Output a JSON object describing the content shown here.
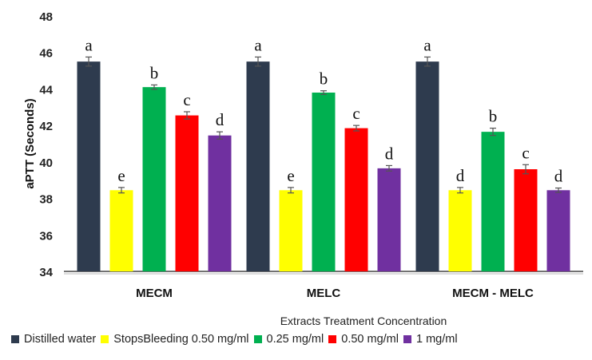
{
  "chart_data": {
    "type": "bar",
    "title": "",
    "xlabel": "Extracts Treatment Concentration",
    "ylabel": "aPTT (Seconds)",
    "ylim": [
      34,
      48
    ],
    "yticks": [
      34,
      36,
      38,
      40,
      42,
      44,
      46,
      48
    ],
    "grid": false,
    "legend_position": "bottom",
    "categories": [
      "MECM",
      "MELC",
      "MECM - MELC"
    ],
    "series": [
      {
        "name": "Distilled water",
        "color": "#2e3b4e",
        "values": [
          45.5,
          45.5,
          45.5
        ],
        "errors": [
          0.25,
          0.25,
          0.25
        ],
        "labels": [
          "a",
          "a",
          "a"
        ]
      },
      {
        "name": "StopsBleeding 0.50 mg/ml",
        "color": "#ffff00",
        "values": [
          38.45,
          38.45,
          38.45
        ],
        "errors": [
          0.15,
          0.15,
          0.15
        ],
        "labels": [
          "e",
          "e",
          "d"
        ]
      },
      {
        "name": "0.25 mg/ml",
        "color": "#00b050",
        "values": [
          44.1,
          43.8,
          41.65
        ],
        "errors": [
          0.12,
          0.1,
          0.2
        ],
        "labels": [
          "b",
          "b",
          "b"
        ]
      },
      {
        "name": "0.50 mg/ml",
        "color": "#ff0000",
        "values": [
          42.55,
          41.85,
          39.6
        ],
        "errors": [
          0.2,
          0.15,
          0.25
        ],
        "labels": [
          "c",
          "c",
          "c"
        ]
      },
      {
        "name": "1 mg/ml",
        "color": "#7030a0",
        "values": [
          41.45,
          39.65,
          38.45
        ],
        "errors": [
          0.2,
          0.15,
          0.12
        ],
        "labels": [
          "d",
          "d",
          "d"
        ]
      }
    ]
  }
}
